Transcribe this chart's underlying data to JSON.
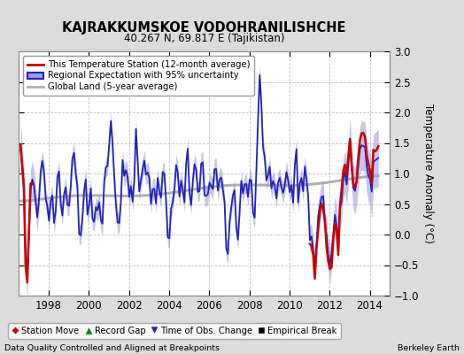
{
  "title": "KAJRAKKUMSKOE VODOHRANILISHCHE",
  "subtitle": "40.267 N, 69.817 E (Tajikistan)",
  "ylabel": "Temperature Anomaly (°C)",
  "footer_left": "Data Quality Controlled and Aligned at Breakpoints",
  "footer_right": "Berkeley Earth",
  "ylim": [
    -1,
    3
  ],
  "yticks": [
    -1,
    -0.5,
    0,
    0.5,
    1,
    1.5,
    2,
    2.5,
    3
  ],
  "xlim": [
    1996.5,
    2015.0
  ],
  "xticks": [
    1998,
    2000,
    2002,
    2004,
    2006,
    2008,
    2010,
    2012,
    2014
  ],
  "bg_color": "#dcdcdc",
  "plot_bg_color": "#ffffff",
  "grid_color": "#c0c0c0",
  "regional_color": "#2222bb",
  "regional_fill_color": "#9999dd",
  "station_color": "#cc0000",
  "global_color": "#b0b0b0",
  "legend1_labels": [
    "This Temperature Station (12-month average)",
    "Regional Expectation with 95% uncertainty",
    "Global Land (5-year average)"
  ],
  "legend2_labels": [
    "Station Move",
    "Record Gap",
    "Time of Obs. Change",
    "Empirical Break"
  ]
}
